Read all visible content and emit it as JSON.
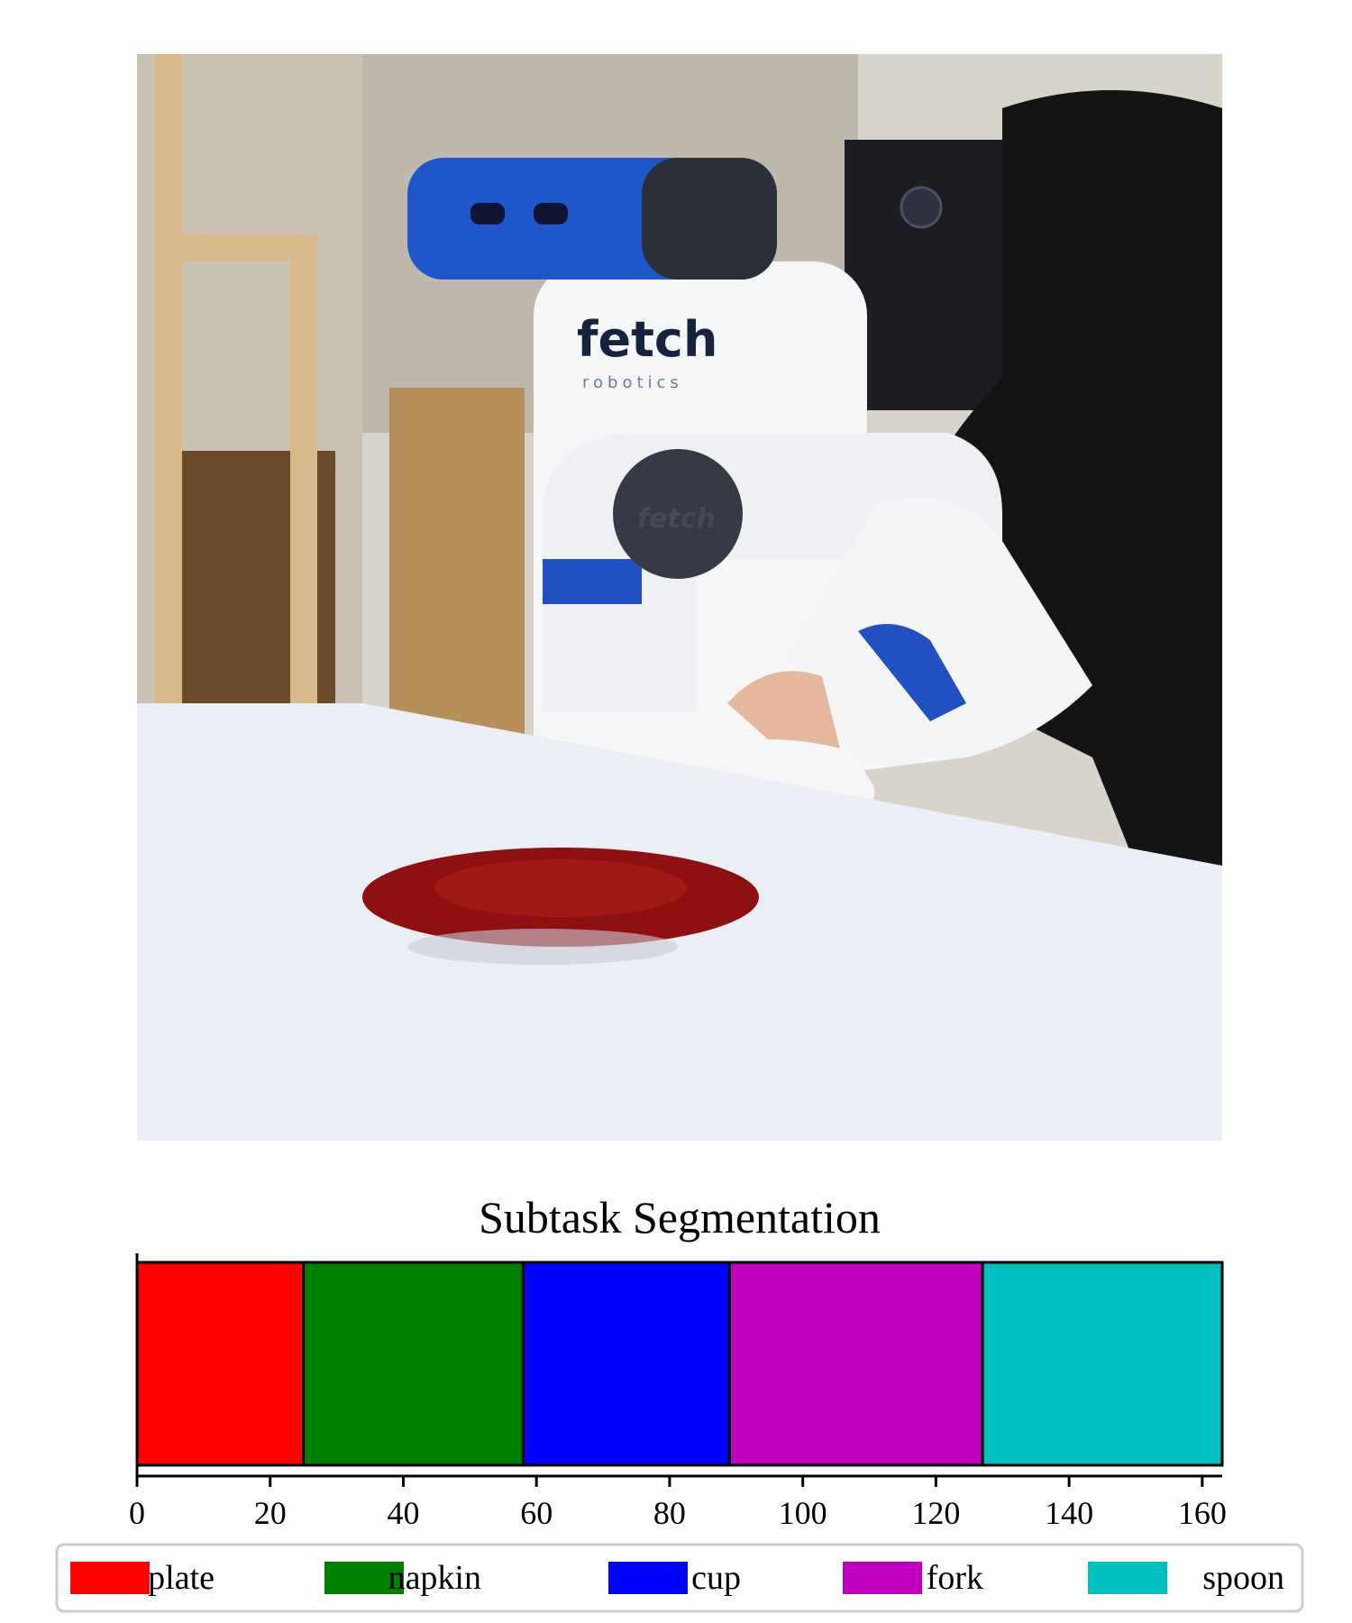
{
  "figure": {
    "photo": {
      "description_icons": [
        "fetch-robot",
        "human-arms",
        "red-plate",
        "white-table",
        "computer-tower",
        "shelving"
      ],
      "logo_text": "fetch",
      "logo_subtext": "robotics",
      "base_logo_text": "fetch"
    }
  },
  "chart_data": {
    "type": "bar",
    "orientation": "horizontal-stacked",
    "title": "Subtask Segmentation",
    "xlabel": "",
    "ylabel": "",
    "xlim": [
      0,
      163
    ],
    "xticks": [
      0,
      20,
      40,
      60,
      80,
      100,
      120,
      140,
      160
    ],
    "grid": false,
    "legend_position": "bottom",
    "segments": [
      {
        "name": "plate",
        "start": 0,
        "end": 25,
        "color": "#ff0000"
      },
      {
        "name": "napkin",
        "start": 25,
        "end": 58,
        "color": "#008000"
      },
      {
        "name": "cup",
        "start": 58,
        "end": 89,
        "color": "#0000ff"
      },
      {
        "name": "fork",
        "start": 89,
        "end": 127,
        "color": "#bf00bf"
      },
      {
        "name": "spoon",
        "start": 127,
        "end": 163,
        "color": "#00bfbf"
      }
    ]
  }
}
